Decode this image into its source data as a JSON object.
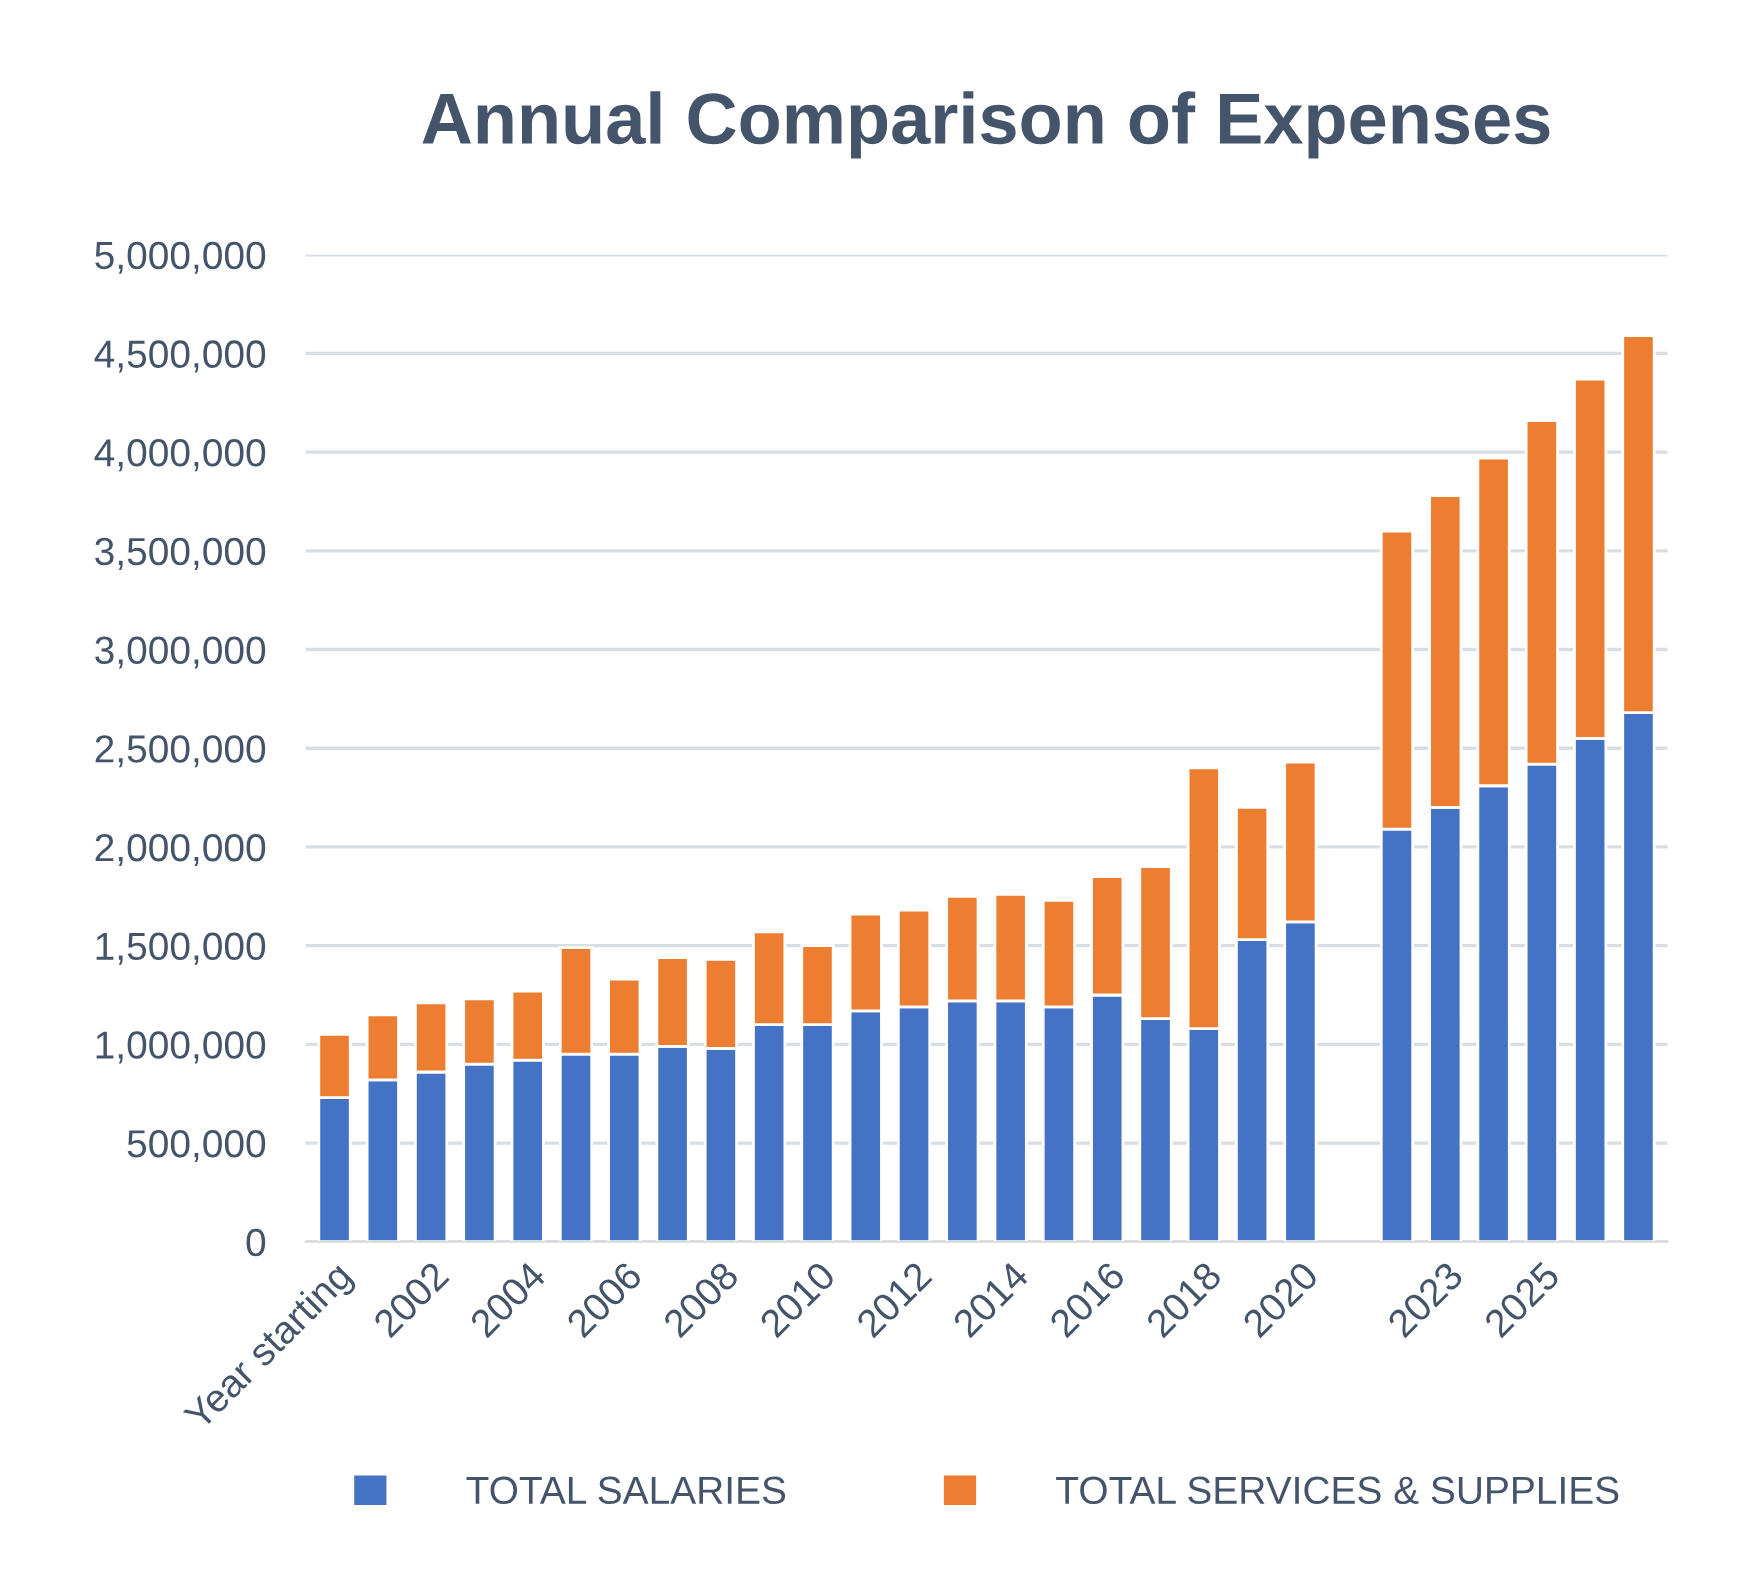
{
  "chart_data": {
    "type": "bar",
    "title": "Annual Comparison of Expenses",
    "stacked": true,
    "categories": [
      "Year starting",
      null,
      "2002",
      null,
      "2004",
      null,
      "2006",
      null,
      "2008",
      null,
      "2010",
      null,
      "2012",
      null,
      "2014",
      null,
      "2016",
      null,
      "2018",
      null,
      "2020",
      null,
      null,
      "2023",
      null,
      "2025",
      null,
      null
    ],
    "series": [
      {
        "name": "TOTAL SALARIES",
        "color": "#4472c4",
        "values": [
          730000,
          820000,
          860000,
          900000,
          920000,
          950000,
          950000,
          990000,
          980000,
          1100000,
          1100000,
          1170000,
          1190000,
          1220000,
          1220000,
          1190000,
          1250000,
          1130000,
          1080000,
          1530000,
          1620000,
          null,
          2090000,
          2200000,
          2310000,
          2420000,
          2550000,
          2680000
        ]
      },
      {
        "name": "TOTAL SERVICES & SUPPLIES",
        "color": "#ed7d31",
        "values": [
          320000,
          330000,
          350000,
          330000,
          350000,
          540000,
          380000,
          450000,
          450000,
          470000,
          400000,
          490000,
          490000,
          530000,
          540000,
          540000,
          600000,
          770000,
          1320000,
          670000,
          810000,
          null,
          1510000,
          1580000,
          1660000,
          1740000,
          1820000,
          1910000
        ]
      }
    ],
    "ylim": [
      0,
      5000000
    ],
    "yticks": [
      {
        "value": 0,
        "label": "0"
      },
      {
        "value": 500000,
        "label": "500,000"
      },
      {
        "value": 1000000,
        "label": "1,000,000"
      },
      {
        "value": 1500000,
        "label": "1,500,000"
      },
      {
        "value": 2000000,
        "label": "2,000,000"
      },
      {
        "value": 2500000,
        "label": "2,500,000"
      },
      {
        "value": 3000000,
        "label": "3,000,000"
      },
      {
        "value": 3500000,
        "label": "3,500,000"
      },
      {
        "value": 4000000,
        "label": "4,000,000"
      },
      {
        "value": 4500000,
        "label": "4,500,000"
      },
      {
        "value": 5000000,
        "label": "5,000,000"
      }
    ],
    "grid": "y",
    "legend": "bottom"
  }
}
